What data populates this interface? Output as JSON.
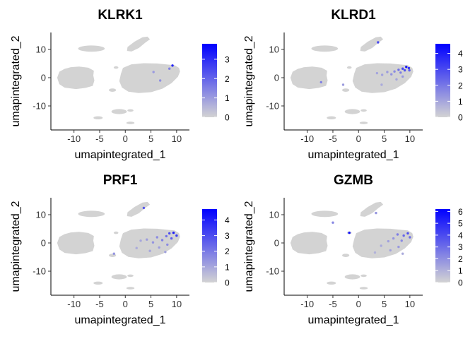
{
  "chart_data": [
    {
      "type": "scatter",
      "title": "KLRK1",
      "xlabel": "umapintegrated_1",
      "ylabel": "umapintegrated_2",
      "xlim": [
        -14.5,
        12.5
      ],
      "ylim": [
        -18.5,
        16
      ],
      "xticks": [
        -10,
        -5,
        0,
        5,
        10
      ],
      "xtick_labels": [
        "-10",
        "-5",
        "0",
        "5",
        "10"
      ],
      "yticks": [
        -10,
        0,
        10
      ],
      "ytick_labels": [
        "-10",
        "0",
        "10"
      ],
      "grid": false,
      "legend": {
        "placement": "right",
        "type": "colorbar",
        "low_color": "#d3d3d3",
        "high_color": "#0000ff",
        "range": [
          0,
          3.8
        ],
        "ticks": [
          0,
          1,
          2,
          3
        ],
        "tick_labels": [
          "0",
          "1",
          "2",
          "3"
        ]
      },
      "expressing_cells": [
        {
          "x": 8.6,
          "y": 3.2,
          "value": 1.5
        },
        {
          "x": 9.2,
          "y": 4.3,
          "value": 3.2
        },
        {
          "x": 5.5,
          "y": 2.0,
          "value": 1.0
        },
        {
          "x": 6.8,
          "y": -1.0,
          "value": 1.2
        }
      ]
    },
    {
      "type": "scatter",
      "title": "KLRD1",
      "xlabel": "umapintegrated_1",
      "ylabel": "umapintegrated_2",
      "xlim": [
        -14.5,
        12.5
      ],
      "ylim": [
        -18.5,
        16
      ],
      "xticks": [
        -10,
        -5,
        0,
        5,
        10
      ],
      "xtick_labels": [
        "-10",
        "-5",
        "0",
        "5",
        "10"
      ],
      "yticks": [
        -10,
        0,
        10
      ],
      "ytick_labels": [
        "-10",
        "0",
        "10"
      ],
      "grid": false,
      "legend": {
        "placement": "right",
        "type": "colorbar",
        "low_color": "#d3d3d3",
        "high_color": "#0000ff",
        "range": [
          0,
          4.6
        ],
        "ticks": [
          0,
          1,
          2,
          3,
          4
        ],
        "tick_labels": [
          "0",
          "1",
          "2",
          "3",
          "4"
        ]
      },
      "expressing_cells": [
        {
          "x": 9.3,
          "y": 3.8,
          "value": 4.2
        },
        {
          "x": 9.8,
          "y": 3.4,
          "value": 3.6
        },
        {
          "x": 8.6,
          "y": 3.2,
          "value": 3.1
        },
        {
          "x": 9.0,
          "y": 2.6,
          "value": 2.8
        },
        {
          "x": 9.9,
          "y": 2.6,
          "value": 2.5
        },
        {
          "x": 7.8,
          "y": 2.8,
          "value": 2.2
        },
        {
          "x": 8.2,
          "y": 1.8,
          "value": 1.9
        },
        {
          "x": 7.0,
          "y": 2.2,
          "value": 1.6
        },
        {
          "x": 6.4,
          "y": 1.2,
          "value": 1.4
        },
        {
          "x": 5.6,
          "y": 2.0,
          "value": 1.2
        },
        {
          "x": 4.6,
          "y": 1.0,
          "value": 1.1
        },
        {
          "x": 3.6,
          "y": 1.6,
          "value": 1.0
        },
        {
          "x": 8.6,
          "y": 0.4,
          "value": 1.3
        },
        {
          "x": 7.4,
          "y": -0.6,
          "value": 1.0
        },
        {
          "x": 4.5,
          "y": -2.5,
          "value": 0.9
        },
        {
          "x": -7.3,
          "y": -1.6,
          "value": 1.8
        },
        {
          "x": -3.0,
          "y": -2.5,
          "value": 1.2
        },
        {
          "x": 3.8,
          "y": 12.5,
          "value": 3.0
        }
      ]
    },
    {
      "type": "scatter",
      "title": "PRF1",
      "xlabel": "umapintegrated_1",
      "ylabel": "umapintegrated_2",
      "xlim": [
        -14.5,
        12.5
      ],
      "ylim": [
        -18.5,
        16
      ],
      "xticks": [
        -10,
        -5,
        0,
        5,
        10
      ],
      "xtick_labels": [
        "-10",
        "-5",
        "0",
        "5",
        "10"
      ],
      "yticks": [
        -10,
        0,
        10
      ],
      "ytick_labels": [
        "-10",
        "0",
        "10"
      ],
      "grid": false,
      "legend": {
        "placement": "right",
        "type": "colorbar",
        "low_color": "#d3d3d3",
        "high_color": "#0000ff",
        "range": [
          0,
          4.7
        ],
        "ticks": [
          0,
          1,
          2,
          3,
          4
        ],
        "tick_labels": [
          "0",
          "1",
          "2",
          "3",
          "4"
        ]
      },
      "expressing_cells": [
        {
          "x": 9.4,
          "y": 3.6,
          "value": 4.0
        },
        {
          "x": 10.0,
          "y": 2.6,
          "value": 3.4
        },
        {
          "x": 8.6,
          "y": 3.4,
          "value": 3.0
        },
        {
          "x": 9.0,
          "y": 1.6,
          "value": 2.6
        },
        {
          "x": 8.0,
          "y": 2.4,
          "value": 2.2
        },
        {
          "x": 7.2,
          "y": 1.0,
          "value": 1.8
        },
        {
          "x": 6.2,
          "y": 2.0,
          "value": 1.6
        },
        {
          "x": 5.4,
          "y": 0.2,
          "value": 1.4
        },
        {
          "x": 4.2,
          "y": 1.2,
          "value": 1.2
        },
        {
          "x": 3.0,
          "y": 0.8,
          "value": 1.0
        },
        {
          "x": 8.2,
          "y": -0.6,
          "value": 1.6
        },
        {
          "x": 6.6,
          "y": -1.6,
          "value": 1.2
        },
        {
          "x": 4.8,
          "y": -2.8,
          "value": 1.0
        },
        {
          "x": 7.8,
          "y": -3.2,
          "value": 1.1
        },
        {
          "x": 2.2,
          "y": -1.8,
          "value": 0.9
        },
        {
          "x": 3.6,
          "y": 12.4,
          "value": 2.8
        },
        {
          "x": -2.2,
          "y": -3.8,
          "value": 1.4
        }
      ]
    },
    {
      "type": "scatter",
      "title": "GZMB",
      "xlabel": "umapintegrated_1",
      "ylabel": "umapintegrated_2",
      "xlim": [
        -14.5,
        12.5
      ],
      "ylim": [
        -18.5,
        16
      ],
      "xticks": [
        -10,
        -5,
        0,
        5,
        10
      ],
      "xtick_labels": [
        "-10",
        "-5",
        "0",
        "5",
        "10"
      ],
      "yticks": [
        -10,
        0,
        10
      ],
      "ytick_labels": [
        "-10",
        "0",
        "10"
      ],
      "grid": false,
      "legend": {
        "placement": "right",
        "type": "colorbar",
        "low_color": "#d3d3d3",
        "high_color": "#0000ff",
        "range": [
          0,
          6.2
        ],
        "ticks": [
          0,
          1,
          2,
          3,
          4,
          5,
          6
        ],
        "tick_labels": [
          "0",
          "1",
          "2",
          "3",
          "4",
          "5",
          "6"
        ]
      },
      "expressing_cells": [
        {
          "x": 9.6,
          "y": 3.4,
          "value": 4.0
        },
        {
          "x": 8.8,
          "y": 2.6,
          "value": 3.2
        },
        {
          "x": 10.0,
          "y": 2.0,
          "value": 3.0
        },
        {
          "x": 7.6,
          "y": 3.0,
          "value": 2.5
        },
        {
          "x": 8.4,
          "y": 0.8,
          "value": 2.2
        },
        {
          "x": 6.8,
          "y": 1.6,
          "value": 1.8
        },
        {
          "x": 5.8,
          "y": 0.6,
          "value": 1.5
        },
        {
          "x": 7.8,
          "y": -1.4,
          "value": 1.7
        },
        {
          "x": 6.2,
          "y": -2.6,
          "value": 1.4
        },
        {
          "x": 4.4,
          "y": -1.0,
          "value": 1.2
        },
        {
          "x": 3.2,
          "y": -3.4,
          "value": 1.0
        },
        {
          "x": 8.6,
          "y": -3.8,
          "value": 1.2
        },
        {
          "x": -1.8,
          "y": 3.6,
          "value": 5.6
        },
        {
          "x": -5.0,
          "y": 7.2,
          "value": 2.2
        },
        {
          "x": 3.4,
          "y": 10.6,
          "value": 1.8
        }
      ]
    }
  ]
}
